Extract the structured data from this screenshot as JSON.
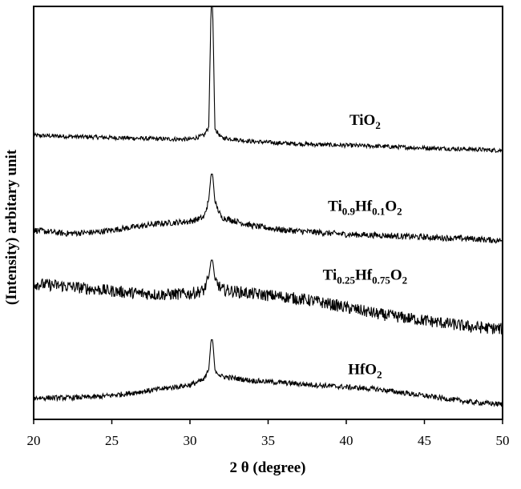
{
  "chart_data": {
    "type": "line",
    "title": "",
    "xlabel": "2 θ (degree)",
    "ylabel": "(Intensity) arbitary unit",
    "xlim": [
      20,
      50
    ],
    "xticks": [
      20,
      25,
      30,
      35,
      40,
      45,
      50
    ],
    "y_ticks_shown": false,
    "grid": false,
    "legend": "none",
    "peak_x": 31.4,
    "series": [
      {
        "name": "TiO2",
        "label_parts": [
          {
            "t": "TiO",
            "sub": false
          },
          {
            "t": "2",
            "sub": true
          }
        ],
        "x": [
          20,
          22,
          24,
          26,
          28,
          30,
          30.9,
          31.2,
          31.35,
          31.45,
          31.6,
          32,
          34,
          36,
          38,
          40,
          42,
          44,
          46,
          48,
          50
        ],
        "values": [
          6.3,
          6.28,
          6.26,
          6.24,
          6.22,
          6.21,
          6.3,
          6.5,
          9.3,
          9.3,
          6.45,
          6.25,
          6.16,
          6.12,
          6.09,
          6.07,
          6.05,
          6.02,
          6.0,
          5.98,
          5.95
        ],
        "noise": 0.05
      },
      {
        "name": "Ti0.9Hf0.1O2",
        "label_parts": [
          {
            "t": "Ti",
            "sub": false
          },
          {
            "t": "0.9",
            "sub": true
          },
          {
            "t": "Hf",
            "sub": false
          },
          {
            "t": "0.1",
            "sub": true
          },
          {
            "t": "O",
            "sub": false
          },
          {
            "t": "2",
            "sub": true
          }
        ],
        "x": [
          20,
          22,
          24,
          26,
          28,
          30,
          30.9,
          31.2,
          31.35,
          31.45,
          31.6,
          32,
          34,
          36,
          38,
          40,
          42,
          44,
          46,
          48,
          50
        ],
        "values": [
          4.1,
          4.02,
          4.05,
          4.15,
          4.25,
          4.3,
          4.4,
          4.8,
          5.4,
          5.4,
          4.75,
          4.4,
          4.2,
          4.1,
          4.05,
          4.0,
          3.98,
          3.95,
          3.92,
          3.9,
          3.85
        ],
        "noise": 0.07
      },
      {
        "name": "Ti0.25Hf0.75O2",
        "label_parts": [
          {
            "t": "Ti",
            "sub": false
          },
          {
            "t": "0.25",
            "sub": true
          },
          {
            "t": "Hf",
            "sub": false
          },
          {
            "t": "0.75",
            "sub": true
          },
          {
            "t": "O",
            "sub": false
          },
          {
            "t": "2",
            "sub": true
          }
        ],
        "x": [
          20,
          22,
          24,
          26,
          28,
          30,
          30.9,
          31.2,
          31.35,
          31.45,
          31.6,
          32,
          34,
          36,
          38,
          40,
          42,
          44,
          46,
          48,
          50
        ],
        "values": [
          2.85,
          2.8,
          2.72,
          2.65,
          2.6,
          2.62,
          2.7,
          3.0,
          3.4,
          3.4,
          2.95,
          2.72,
          2.62,
          2.55,
          2.45,
          2.3,
          2.15,
          2.05,
          1.95,
          1.85,
          1.8
        ],
        "noise": 0.14
      },
      {
        "name": "HfO2",
        "label_parts": [
          {
            "t": "HfO",
            "sub": false
          },
          {
            "t": "2",
            "sub": true
          }
        ],
        "x": [
          20,
          22,
          24,
          26,
          28,
          30,
          30.9,
          31.2,
          31.35,
          31.45,
          31.6,
          32,
          34,
          36,
          38,
          40,
          42,
          44,
          46,
          48,
          50
        ],
        "values": [
          0.2,
          0.2,
          0.22,
          0.3,
          0.4,
          0.5,
          0.62,
          0.85,
          1.55,
          1.55,
          0.85,
          0.7,
          0.6,
          0.55,
          0.5,
          0.45,
          0.4,
          0.3,
          0.2,
          0.1,
          0.05
        ],
        "noise": 0.06
      }
    ],
    "ylim": [
      -0.3,
      9.3
    ],
    "label_anchor_x": [
      41.2,
      41.2,
      41.2,
      41.2
    ],
    "label_anchor_y": [
      6.55,
      4.55,
      2.95,
      0.75
    ]
  }
}
